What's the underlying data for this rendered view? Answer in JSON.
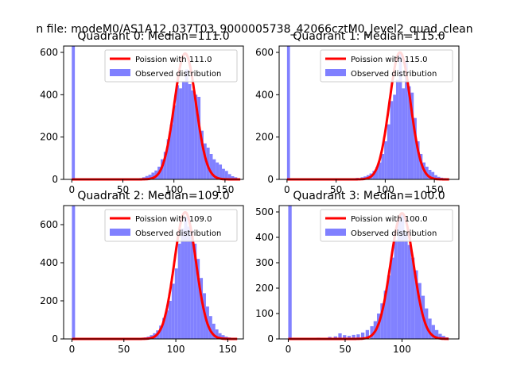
{
  "figure": {
    "suptitle": "n file: modeM0/AS1A12_037T03_9000005738_42066cztM0_level2_quad_clean"
  },
  "colors": {
    "hist": "#8080ff",
    "fit": "#ff0000",
    "axis": "#000000",
    "legend_edge": "#cccccc"
  },
  "chart_data": [
    {
      "type": "bar",
      "title": "Quadrant 0: Median=111.0",
      "xlim": [
        -8,
        168
      ],
      "ylim": [
        0,
        630
      ],
      "xticks": [
        "0",
        "50",
        "100",
        "150"
      ],
      "xtick_values": [
        0,
        50,
        100,
        150
      ],
      "yticks": [
        "0",
        "200",
        "400",
        "600"
      ],
      "ytick_values": [
        0,
        200,
        400,
        600
      ],
      "bin_width": 3,
      "hist": [
        [
          0,
          630
        ],
        [
          60,
          2
        ],
        [
          63,
          4
        ],
        [
          66,
          6
        ],
        [
          69,
          10
        ],
        [
          72,
          16
        ],
        [
          75,
          22
        ],
        [
          78,
          32
        ],
        [
          81,
          42
        ],
        [
          84,
          60
        ],
        [
          87,
          95
        ],
        [
          90,
          130
        ],
        [
          93,
          190
        ],
        [
          96,
          260
        ],
        [
          99,
          350
        ],
        [
          102,
          445
        ],
        [
          105,
          430
        ],
        [
          108,
          465
        ],
        [
          111,
          520
        ],
        [
          114,
          450
        ],
        [
          117,
          420
        ],
        [
          120,
          400
        ],
        [
          123,
          390
        ],
        [
          126,
          230
        ],
        [
          129,
          170
        ],
        [
          132,
          150
        ],
        [
          135,
          120
        ],
        [
          138,
          95
        ],
        [
          141,
          80
        ],
        [
          144,
          70
        ],
        [
          147,
          50
        ],
        [
          150,
          40
        ],
        [
          153,
          25
        ],
        [
          156,
          15
        ],
        [
          159,
          10
        ],
        [
          162,
          5
        ]
      ],
      "fit_mean": 111,
      "fit_peak": 595,
      "legend": {
        "fit": "Poission with 111.0",
        "hist": "Observed distribution"
      }
    },
    {
      "type": "bar",
      "title": "Quadrant 1: Median=115.0",
      "xlim": [
        -8,
        175
      ],
      "ylim": [
        0,
        630
      ],
      "xticks": [
        "0",
        "50",
        "100",
        "150"
      ],
      "xtick_values": [
        0,
        50,
        100,
        150
      ],
      "yticks": [
        "0",
        "200",
        "400",
        "600"
      ],
      "ytick_values": [
        0,
        200,
        400,
        600
      ],
      "bin_width": 3,
      "hist": [
        [
          0,
          630
        ],
        [
          55,
          3
        ],
        [
          60,
          4
        ],
        [
          65,
          5
        ],
        [
          70,
          7
        ],
        [
          75,
          10
        ],
        [
          78,
          14
        ],
        [
          81,
          20
        ],
        [
          84,
          28
        ],
        [
          87,
          40
        ],
        [
          90,
          58
        ],
        [
          93,
          80
        ],
        [
          96,
          120
        ],
        [
          99,
          180
        ],
        [
          102,
          260
        ],
        [
          105,
          370
        ],
        [
          108,
          400
        ],
        [
          111,
          470
        ],
        [
          114,
          600
        ],
        [
          117,
          430
        ],
        [
          120,
          560
        ],
        [
          123,
          440
        ],
        [
          126,
          410
        ],
        [
          129,
          290
        ],
        [
          132,
          180
        ],
        [
          135,
          120
        ],
        [
          138,
          80
        ],
        [
          141,
          60
        ],
        [
          144,
          45
        ],
        [
          147,
          35
        ],
        [
          150,
          20
        ],
        [
          153,
          12
        ],
        [
          156,
          8
        ],
        [
          159,
          6
        ],
        [
          162,
          4
        ]
      ],
      "fit_mean": 115,
      "fit_peak": 600,
      "legend": {
        "fit": "Poission with 115.0",
        "hist": "Observed distribution"
      }
    },
    {
      "type": "bar",
      "title": "Quadrant 2: Median=109.0",
      "xlim": [
        -8,
        165
      ],
      "ylim": [
        0,
        700
      ],
      "xticks": [
        "0",
        "50",
        "100",
        "150"
      ],
      "xtick_values": [
        0,
        50,
        100,
        150
      ],
      "yticks": [
        "0",
        "200",
        "400",
        "600"
      ],
      "ytick_values": [
        0,
        200,
        400,
        600
      ],
      "bin_width": 3,
      "hist": [
        [
          0,
          700
        ],
        [
          60,
          2
        ],
        [
          63,
          3
        ],
        [
          66,
          5
        ],
        [
          69,
          8
        ],
        [
          72,
          12
        ],
        [
          75,
          20
        ],
        [
          78,
          30
        ],
        [
          81,
          45
        ],
        [
          84,
          70
        ],
        [
          87,
          110
        ],
        [
          90,
          150
        ],
        [
          93,
          200
        ],
        [
          96,
          290
        ],
        [
          99,
          370
        ],
        [
          102,
          500
        ],
        [
          105,
          580
        ],
        [
          108,
          640
        ],
        [
          111,
          590
        ],
        [
          114,
          570
        ],
        [
          117,
          500
        ],
        [
          120,
          420
        ],
        [
          123,
          320
        ],
        [
          126,
          240
        ],
        [
          129,
          170
        ],
        [
          132,
          120
        ],
        [
          135,
          80
        ],
        [
          138,
          50
        ],
        [
          141,
          30
        ],
        [
          144,
          20
        ],
        [
          147,
          12
        ],
        [
          150,
          8
        ],
        [
          153,
          5
        ],
        [
          156,
          3
        ]
      ],
      "fit_mean": 109,
      "fit_peak": 665,
      "legend": {
        "fit": "Poission with 109.0",
        "hist": "Observed distribution"
      }
    },
    {
      "type": "bar",
      "title": "Quadrant 3: Median=100.0",
      "xlim": [
        -8,
        150
      ],
      "ylim": [
        0,
        525
      ],
      "xticks": [
        "0",
        "50",
        "100"
      ],
      "xtick_values": [
        0,
        50,
        100
      ],
      "yticks": [
        "0",
        "100",
        "200",
        "300",
        "400",
        "500"
      ],
      "ytick_values": [
        0,
        100,
        200,
        300,
        400,
        500
      ],
      "bin_width": 3,
      "hist": [
        [
          0,
          525
        ],
        [
          20,
          3
        ],
        [
          25,
          5
        ],
        [
          30,
          4
        ],
        [
          35,
          8
        ],
        [
          40,
          10
        ],
        [
          44,
          22
        ],
        [
          48,
          15
        ],
        [
          52,
          12
        ],
        [
          56,
          16
        ],
        [
          60,
          18
        ],
        [
          64,
          25
        ],
        [
          68,
          35
        ],
        [
          72,
          50
        ],
        [
          75,
          70
        ],
        [
          78,
          100
        ],
        [
          81,
          140
        ],
        [
          84,
          190
        ],
        [
          87,
          250
        ],
        [
          90,
          320
        ],
        [
          93,
          390
        ],
        [
          96,
          470
        ],
        [
          99,
          490
        ],
        [
          102,
          420
        ],
        [
          105,
          370
        ],
        [
          108,
          320
        ],
        [
          111,
          270
        ],
        [
          114,
          220
        ],
        [
          117,
          170
        ],
        [
          120,
          120
        ],
        [
          123,
          80
        ],
        [
          126,
          55
        ],
        [
          129,
          35
        ],
        [
          132,
          20
        ],
        [
          135,
          12
        ],
        [
          138,
          6
        ]
      ],
      "fit_mean": 100,
      "fit_peak": 495,
      "legend": {
        "fit": "Poission with 100.0",
        "hist": "Observed distribution"
      }
    }
  ]
}
